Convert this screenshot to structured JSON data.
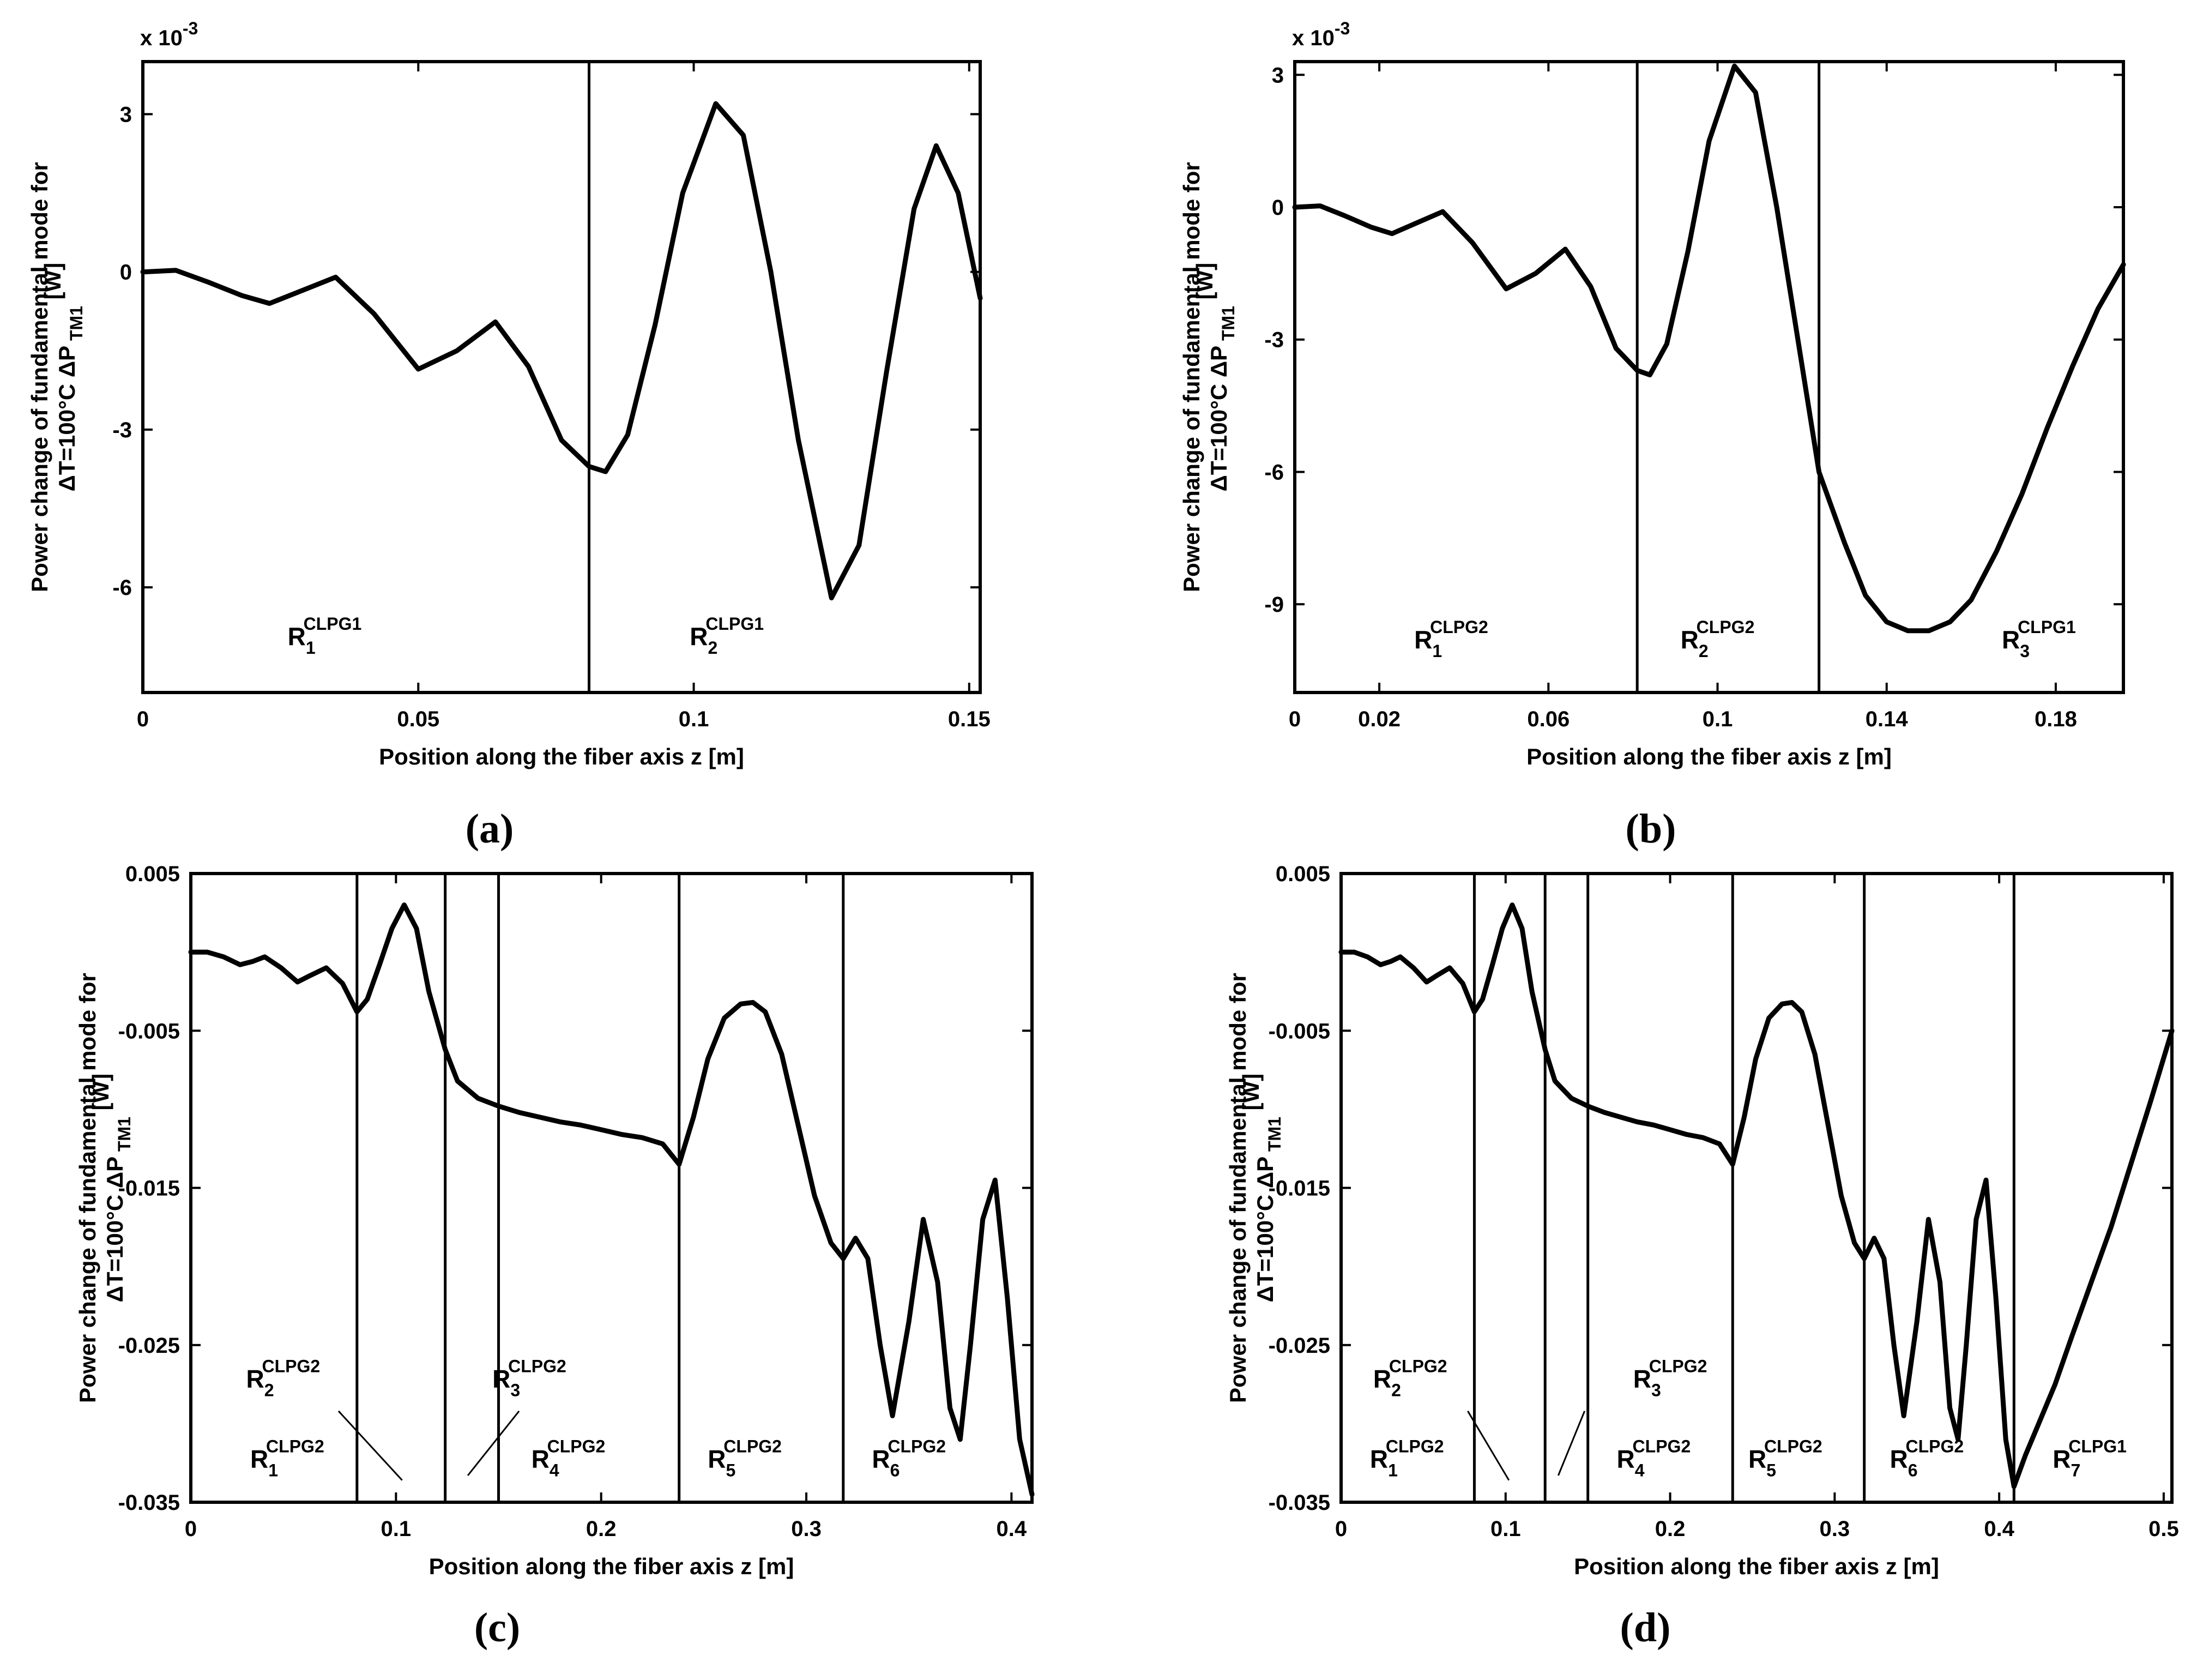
{
  "chart_data": [
    {
      "id": "a",
      "type": "line",
      "caption": "(a)",
      "xlabel": "Position along the fiber axis z [m]",
      "ylabel_line1": "Power change of fundamental mode for",
      "ylabel_line2": "ΔT=100°C  ΔP",
      "ylabel_sub": "TM1",
      "ylabel_unit": "[W]",
      "y_multiplier": "x 10",
      "y_multiplier_exp": "-3",
      "xlim": [
        0,
        0.152
      ],
      "ylim": [
        -8,
        4
      ],
      "xticks": [
        0,
        0.05,
        0.1,
        0.15
      ],
      "xtick_labels": [
        "0",
        "0.05",
        "0.1",
        "0.15"
      ],
      "yticks": [
        3,
        0,
        -3,
        -6
      ],
      "ytick_labels": [
        "3",
        "0",
        "-3",
        "-6"
      ],
      "boundaries": [
        0.081
      ],
      "regions": [
        {
          "label": "R",
          "sub": "1",
          "sup": "CLPG1",
          "x": 0.033,
          "y": -7.1
        },
        {
          "label": "R",
          "sub": "2",
          "sup": "CLPG1",
          "x": 0.106,
          "y": -7.1
        }
      ],
      "series": [
        {
          "name": "ΔP TM1",
          "x": [
            0,
            0.006,
            0.012,
            0.018,
            0.023,
            0.029,
            0.035,
            0.042,
            0.05,
            0.057,
            0.064,
            0.07,
            0.076,
            0.081,
            0.084,
            0.088,
            0.093,
            0.098,
            0.104,
            0.109,
            0.114,
            0.119,
            0.125,
            0.13,
            0.135,
            0.14,
            0.144,
            0.148,
            0.152
          ],
          "y": [
            0,
            0.03,
            -0.2,
            -0.45,
            -0.6,
            -0.35,
            -0.1,
            -0.8,
            -1.85,
            -1.5,
            -0.95,
            -1.8,
            -3.2,
            -3.7,
            -3.8,
            -3.1,
            -1.0,
            1.5,
            3.2,
            2.6,
            0.0,
            -3.2,
            -6.2,
            -5.2,
            -1.9,
            1.2,
            2.4,
            1.5,
            -0.5
          ]
        }
      ]
    },
    {
      "id": "b",
      "type": "line",
      "caption": "(b)",
      "xlabel": "Position along the fiber axis z [m]",
      "ylabel_line1": "Power change of fundamental mode for",
      "ylabel_line2": "ΔT=100°C  ΔP",
      "ylabel_sub": "TM1",
      "ylabel_unit": "[W]",
      "y_multiplier": "x 10",
      "y_multiplier_exp": "-3",
      "xlim": [
        0,
        0.196
      ],
      "ylim": [
        -11,
        3.3
      ],
      "xticks": [
        0,
        0.02,
        0.06,
        0.1,
        0.14,
        0.18
      ],
      "xtick_labels": [
        "0",
        "0.02",
        "0.06",
        "0.1",
        "0.14",
        "0.18"
      ],
      "yticks": [
        3,
        0,
        -3,
        -6,
        -9
      ],
      "ytick_labels": [
        "3",
        "0",
        "-3",
        "-6",
        "-9"
      ],
      "boundaries": [
        0.081,
        0.124
      ],
      "regions": [
        {
          "label": "R",
          "sub": "1",
          "sup": "CLPG2",
          "x": 0.037,
          "y": -10.0
        },
        {
          "label": "R",
          "sub": "2",
          "sup": "CLPG2",
          "x": 0.1,
          "y": -10.0
        },
        {
          "label": "R",
          "sub": "3",
          "sup": "CLPG1",
          "x": 0.176,
          "y": -10.0
        }
      ],
      "series": [
        {
          "name": "ΔP TM1",
          "x": [
            0,
            0.006,
            0.012,
            0.018,
            0.023,
            0.029,
            0.035,
            0.042,
            0.05,
            0.057,
            0.064,
            0.07,
            0.076,
            0.081,
            0.084,
            0.088,
            0.093,
            0.098,
            0.104,
            0.109,
            0.114,
            0.119,
            0.124,
            0.13,
            0.135,
            0.14,
            0.145,
            0.15,
            0.155,
            0.16,
            0.166,
            0.172,
            0.178,
            0.184,
            0.19,
            0.196
          ],
          "y": [
            0,
            0.03,
            -0.2,
            -0.45,
            -0.6,
            -0.35,
            -0.1,
            -0.8,
            -1.85,
            -1.5,
            -0.95,
            -1.8,
            -3.2,
            -3.7,
            -3.8,
            -3.1,
            -1.0,
            1.5,
            3.2,
            2.6,
            0.0,
            -3.0,
            -6.0,
            -7.6,
            -8.8,
            -9.4,
            -9.6,
            -9.6,
            -9.4,
            -8.9,
            -7.8,
            -6.5,
            -5.0,
            -3.6,
            -2.3,
            -1.3
          ]
        }
      ]
    },
    {
      "id": "c",
      "type": "line",
      "caption": "(c)",
      "xlabel": "Position along the fiber axis z [m]",
      "ylabel_line1": "Power change of fundamental mode for",
      "ylabel_line2": "ΔT=100°C  ΔP",
      "ylabel_sub": "TM1",
      "ylabel_unit": "[W]",
      "y_multiplier": "",
      "y_multiplier_exp": "",
      "xlim": [
        0,
        0.41
      ],
      "ylim": [
        -0.035,
        0.005
      ],
      "xticks": [
        0,
        0.1,
        0.2,
        0.3,
        0.4
      ],
      "xtick_labels": [
        "0",
        "0.1",
        "0.2",
        "0.3",
        "0.4"
      ],
      "yticks": [
        0.005,
        -0.005,
        -0.015,
        -0.025,
        -0.035
      ],
      "ytick_labels": [
        "0.005",
        "-0.005",
        "-0.015",
        "-0.025",
        "-0.035"
      ],
      "boundaries": [
        0.081,
        0.124,
        0.15,
        0.238,
        0.318
      ],
      "regions": [
        {
          "label": "R",
          "sub": "1",
          "sup": "CLPG2",
          "x": 0.047,
          "y": -0.0328
        },
        {
          "label": "R",
          "sub": "2",
          "sup": "CLPG2",
          "x": 0.045,
          "y": -0.0277
        },
        {
          "label": "R",
          "sub": "3",
          "sup": "CLPG2",
          "x": 0.165,
          "y": -0.0277
        },
        {
          "label": "R",
          "sub": "4",
          "sup": "CLPG2",
          "x": 0.184,
          "y": -0.0328
        },
        {
          "label": "R",
          "sub": "5",
          "sup": "CLPG2",
          "x": 0.27,
          "y": -0.0328
        },
        {
          "label": "R",
          "sub": "6",
          "sup": "CLPG2",
          "x": 0.35,
          "y": -0.0328
        }
      ],
      "leaders": [
        {
          "x1": 0.072,
          "y1": -0.0292,
          "x2": 0.103,
          "y2": -0.0336
        },
        {
          "x1": 0.16,
          "y1": -0.0292,
          "x2": 0.135,
          "y2": -0.0333
        }
      ],
      "series": [
        {
          "name": "ΔP TM1",
          "x": [
            0,
            0.008,
            0.016,
            0.024,
            0.03,
            0.036,
            0.044,
            0.052,
            0.058,
            0.066,
            0.074,
            0.081,
            0.086,
            0.092,
            0.098,
            0.104,
            0.11,
            0.116,
            0.124,
            0.13,
            0.14,
            0.15,
            0.16,
            0.17,
            0.18,
            0.19,
            0.2,
            0.21,
            0.22,
            0.23,
            0.238,
            0.245,
            0.252,
            0.26,
            0.268,
            0.274,
            0.28,
            0.288,
            0.296,
            0.304,
            0.312,
            0.318,
            0.324,
            0.33,
            0.336,
            0.342,
            0.35,
            0.357,
            0.364,
            0.37,
            0.375,
            0.38,
            0.386,
            0.392,
            0.398,
            0.404,
            0.41
          ],
          "y": [
            0.0,
            0.0,
            -0.0003,
            -0.0008,
            -0.0006,
            -0.0003,
            -0.001,
            -0.0019,
            -0.0015,
            -0.001,
            -0.002,
            -0.0038,
            -0.003,
            -0.0008,
            0.0015,
            0.003,
            0.0015,
            -0.0025,
            -0.0062,
            -0.0082,
            -0.0093,
            -0.0098,
            -0.0102,
            -0.0105,
            -0.0108,
            -0.011,
            -0.0113,
            -0.0116,
            -0.0118,
            -0.0122,
            -0.0135,
            -0.0105,
            -0.0068,
            -0.0042,
            -0.0033,
            -0.0032,
            -0.0038,
            -0.0065,
            -0.011,
            -0.0155,
            -0.0185,
            -0.0195,
            -0.0182,
            -0.0195,
            -0.025,
            -0.0295,
            -0.0235,
            -0.017,
            -0.021,
            -0.029,
            -0.031,
            -0.025,
            -0.017,
            -0.0145,
            -0.022,
            -0.031,
            -0.0345
          ]
        }
      ]
    },
    {
      "id": "d",
      "type": "line",
      "caption": "(d)",
      "xlabel": "Position along the fiber axis z [m]",
      "ylabel_line1": "Power change of fundamental mode for",
      "ylabel_line2": "ΔT=100°C  ΔP",
      "ylabel_sub": "TM1",
      "ylabel_unit": "[W]",
      "y_multiplier": "",
      "y_multiplier_exp": "",
      "xlim": [
        0,
        0.505
      ],
      "ylim": [
        -0.035,
        0.005
      ],
      "xticks": [
        0,
        0.1,
        0.2,
        0.3,
        0.4,
        0.5
      ],
      "xtick_labels": [
        "0",
        "0.1",
        "0.2",
        "0.3",
        "0.4",
        "0.5"
      ],
      "yticks": [
        0.005,
        -0.005,
        -0.015,
        -0.025,
        -0.035
      ],
      "ytick_labels": [
        "0.005",
        "-0.005",
        "-0.015",
        "-0.025",
        "-0.035"
      ],
      "boundaries": [
        0.081,
        0.124,
        0.15,
        0.238,
        0.318,
        0.409
      ],
      "regions": [
        {
          "label": "R",
          "sub": "1",
          "sup": "CLPG2",
          "x": 0.04,
          "y": -0.0328
        },
        {
          "label": "R",
          "sub": "2",
          "sup": "CLPG2",
          "x": 0.042,
          "y": -0.0277
        },
        {
          "label": "R",
          "sub": "3",
          "sup": "CLPG2",
          "x": 0.2,
          "y": -0.0277
        },
        {
          "label": "R",
          "sub": "4",
          "sup": "CLPG2",
          "x": 0.19,
          "y": -0.0328
        },
        {
          "label": "R",
          "sub": "5",
          "sup": "CLPG2",
          "x": 0.27,
          "y": -0.0328
        },
        {
          "label": "R",
          "sub": "6",
          "sup": "CLPG2",
          "x": 0.356,
          "y": -0.0328
        },
        {
          "label": "R",
          "sub": "7",
          "sup": "CLPG1",
          "x": 0.455,
          "y": -0.0328
        }
      ],
      "leaders": [
        {
          "x1": 0.077,
          "y1": -0.0292,
          "x2": 0.102,
          "y2": -0.0336
        },
        {
          "x1": 0.148,
          "y1": -0.0292,
          "x2": 0.132,
          "y2": -0.0333
        }
      ],
      "series": [
        {
          "name": "ΔP TM1",
          "x": [
            0,
            0.008,
            0.016,
            0.024,
            0.03,
            0.036,
            0.044,
            0.052,
            0.058,
            0.066,
            0.074,
            0.081,
            0.086,
            0.092,
            0.098,
            0.104,
            0.11,
            0.116,
            0.124,
            0.13,
            0.14,
            0.15,
            0.16,
            0.17,
            0.18,
            0.19,
            0.2,
            0.21,
            0.22,
            0.23,
            0.238,
            0.245,
            0.252,
            0.26,
            0.268,
            0.274,
            0.28,
            0.288,
            0.296,
            0.304,
            0.312,
            0.318,
            0.324,
            0.33,
            0.336,
            0.342,
            0.35,
            0.357,
            0.364,
            0.37,
            0.375,
            0.38,
            0.386,
            0.392,
            0.398,
            0.404,
            0.409,
            0.416,
            0.424,
            0.434,
            0.444,
            0.456,
            0.468,
            0.48,
            0.492,
            0.505
          ],
          "y": [
            0.0,
            0.0,
            -0.0003,
            -0.0008,
            -0.0006,
            -0.0003,
            -0.001,
            -0.0019,
            -0.0015,
            -0.001,
            -0.002,
            -0.0038,
            -0.003,
            -0.0008,
            0.0015,
            0.003,
            0.0015,
            -0.0025,
            -0.0062,
            -0.0082,
            -0.0093,
            -0.0098,
            -0.0102,
            -0.0105,
            -0.0108,
            -0.011,
            -0.0113,
            -0.0116,
            -0.0118,
            -0.0122,
            -0.0135,
            -0.0105,
            -0.0068,
            -0.0042,
            -0.0033,
            -0.0032,
            -0.0038,
            -0.0065,
            -0.011,
            -0.0155,
            -0.0185,
            -0.0195,
            -0.0182,
            -0.0195,
            -0.025,
            -0.0295,
            -0.0235,
            -0.017,
            -0.021,
            -0.029,
            -0.031,
            -0.025,
            -0.017,
            -0.0145,
            -0.022,
            -0.031,
            -0.034,
            -0.032,
            -0.03,
            -0.0275,
            -0.0245,
            -0.021,
            -0.0175,
            -0.0135,
            -0.0095,
            -0.005
          ]
        }
      ]
    }
  ]
}
